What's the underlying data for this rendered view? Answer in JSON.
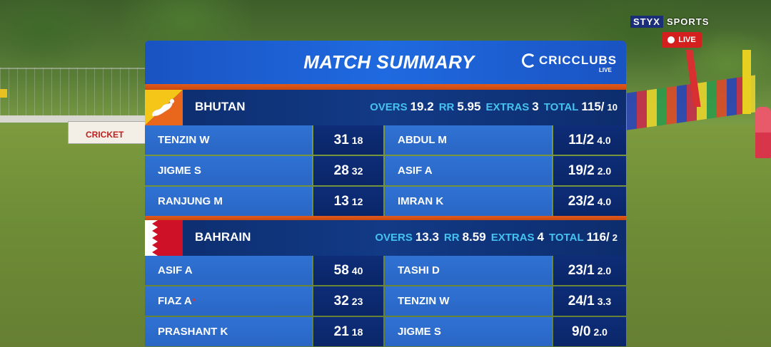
{
  "broadcaster": {
    "brand_part1": "STYX",
    "brand_part2": "SPORTS",
    "live_label": "LIVE"
  },
  "background": {
    "adboard_text": "CRICKET"
  },
  "card": {
    "title": "MATCH SUMMARY",
    "brand": "CRICCLUBS",
    "brand_sub": "LIVE",
    "colors": {
      "header": "#1f6ae0",
      "divider": "#e15a1c",
      "team_bar": "#123a86",
      "stat_label": "#45c2f0"
    }
  },
  "teams": [
    {
      "name": "BHUTAN",
      "flag": "bhutan-flag",
      "overs_label": "OVERS",
      "overs": "19.2",
      "rr_label": "RR",
      "rr": "5.95",
      "extras_label": "EXTRAS",
      "extras": "3",
      "total_label": "TOTAL",
      "total": "115/",
      "total_wkts": "10",
      "batting": [
        {
          "name": "TENZIN W",
          "runs": "31",
          "balls": "18"
        },
        {
          "name": "JIGME S",
          "runs": "28",
          "balls": "32"
        },
        {
          "name": "RANJUNG M",
          "runs": "13",
          "balls": "12"
        }
      ],
      "bowling": [
        {
          "name": "ABDUL M",
          "figures": "11/2",
          "overs": "4.0"
        },
        {
          "name": "ASIF A",
          "figures": "19/2",
          "overs": "2.0"
        },
        {
          "name": "IMRAN K",
          "figures": "23/2",
          "overs": "4.0"
        }
      ]
    },
    {
      "name": "BAHRAIN",
      "flag": "bahrain-flag",
      "overs_label": "OVERS",
      "overs": "13.3",
      "rr_label": "RR",
      "rr": "8.59",
      "extras_label": "EXTRAS",
      "extras": "4",
      "total_label": "TOTAL",
      "total": "116/",
      "total_wkts": "2",
      "batting": [
        {
          "name": "ASIF A",
          "runs": "58",
          "balls": "40"
        },
        {
          "name": "FIAZ A",
          "star": "*",
          "runs": "32",
          "balls": "23"
        },
        {
          "name": "PRASHANT K",
          "runs": "21",
          "balls": "18"
        }
      ],
      "bowling": [
        {
          "name": "TASHI D",
          "figures": "23/1",
          "overs": "2.0"
        },
        {
          "name": "TENZIN W",
          "figures": "24/1",
          "overs": "3.3"
        },
        {
          "name": "JIGME S",
          "figures": "9/0",
          "overs": "2.0"
        }
      ]
    }
  ]
}
